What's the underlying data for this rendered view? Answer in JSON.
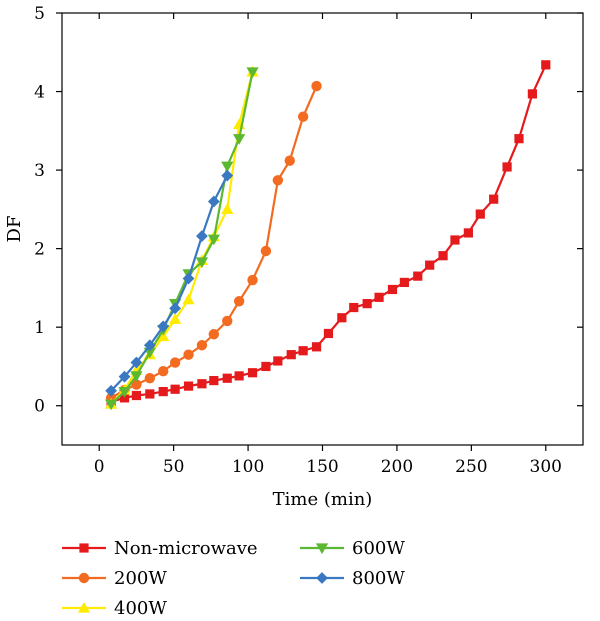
{
  "chart_data": {
    "type": "line",
    "xlabel": "Time (min)",
    "ylabel": "DF",
    "xlim": [
      -25,
      325
    ],
    "ylim": [
      -0.5,
      5
    ],
    "xticks": [
      0,
      50,
      100,
      150,
      200,
      250,
      300
    ],
    "yticks": [
      0,
      1,
      2,
      3,
      4,
      5
    ],
    "grid": false,
    "legend_position": "bottom",
    "series": [
      {
        "name": "Non-microwave",
        "color": "#e41a1c",
        "marker": "square",
        "x": [
          8,
          17,
          25,
          34,
          43,
          51,
          60,
          69,
          77,
          86,
          94,
          103,
          112,
          120,
          129,
          137,
          146,
          154,
          163,
          171,
          180,
          188,
          197,
          205,
          214,
          222,
          231,
          239,
          248,
          256,
          265,
          274,
          282,
          291,
          300
        ],
        "y": [
          0.05,
          0.1,
          0.13,
          0.15,
          0.18,
          0.21,
          0.25,
          0.28,
          0.32,
          0.35,
          0.38,
          0.42,
          0.5,
          0.57,
          0.65,
          0.7,
          0.75,
          0.92,
          1.12,
          1.25,
          1.3,
          1.38,
          1.48,
          1.57,
          1.65,
          1.79,
          1.91,
          2.11,
          2.2,
          2.44,
          2.63,
          3.04,
          3.4,
          3.97,
          4.34
        ]
      },
      {
        "name": "200W",
        "color": "#f26b21",
        "marker": "circle",
        "x": [
          8,
          17,
          25,
          34,
          43,
          51,
          60,
          69,
          77,
          86,
          94,
          103,
          112,
          120,
          128,
          137,
          146
        ],
        "y": [
          0.1,
          0.2,
          0.27,
          0.35,
          0.44,
          0.55,
          0.65,
          0.77,
          0.91,
          1.08,
          1.33,
          1.6,
          1.97,
          2.87,
          3.12,
          3.68,
          4.07
        ]
      },
      {
        "name": "400W",
        "color": "#ffeb00",
        "marker": "triangle-up",
        "x": [
          8,
          17,
          25,
          34,
          43,
          51,
          60,
          69,
          77,
          86,
          94,
          103
        ],
        "y": [
          0.02,
          0.2,
          0.45,
          0.65,
          0.88,
          1.1,
          1.35,
          1.85,
          2.15,
          2.5,
          3.58,
          4.25
        ]
      },
      {
        "name": "600W",
        "color": "#5cb830",
        "marker": "triangle-down",
        "x": [
          8,
          17,
          25,
          34,
          43,
          51,
          60,
          69,
          77,
          86,
          94,
          103
        ],
        "y": [
          0.02,
          0.18,
          0.38,
          0.68,
          0.97,
          1.3,
          1.68,
          1.83,
          2.12,
          3.05,
          3.4,
          4.25
        ]
      },
      {
        "name": "800W",
        "color": "#3a78c2",
        "marker": "diamond",
        "x": [
          8,
          17,
          25,
          34,
          43,
          51,
          60,
          69,
          77,
          86
        ],
        "y": [
          0.19,
          0.37,
          0.55,
          0.77,
          1.01,
          1.24,
          1.62,
          2.16,
          2.6,
          2.93
        ]
      }
    ]
  }
}
